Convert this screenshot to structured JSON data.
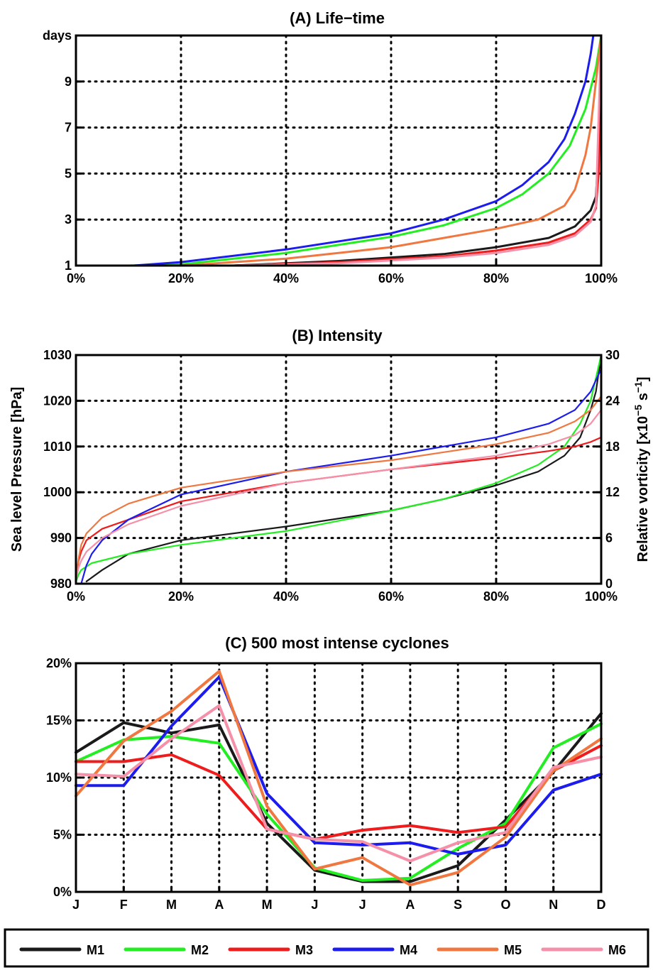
{
  "legend": [
    {
      "label": "M1",
      "color": "#1a1a1a"
    },
    {
      "label": "M2",
      "color": "#22ee22"
    },
    {
      "label": "M3",
      "color": "#ee1c1c"
    },
    {
      "label": "M4",
      "color": "#1c1cee"
    },
    {
      "label": "M5",
      "color": "#f07840"
    },
    {
      "label": "M6",
      "color": "#f590a8"
    }
  ],
  "chart_data": [
    {
      "type": "line",
      "title_letter": "(A)",
      "title_text": "Life−time",
      "xlim": [
        0,
        100
      ],
      "ylim": [
        1,
        11
      ],
      "xticks": [
        0,
        20,
        40,
        60,
        80,
        100
      ],
      "xtick_labels": [
        "0%",
        "20%",
        "40%",
        "60%",
        "80%",
        "100%"
      ],
      "yticks": [
        1,
        3,
        5,
        7,
        9,
        11
      ],
      "ytick_labels": [
        "1",
        "3",
        "5",
        "7",
        "9",
        "days"
      ],
      "grid": true,
      "series": [
        {
          "name": "M1",
          "color": "#1a1a1a",
          "x": [
            0,
            30,
            50,
            70,
            80,
            90,
            95,
            98,
            99,
            99.5,
            100
          ],
          "y": [
            1,
            1,
            1.2,
            1.5,
            1.8,
            2.2,
            2.7,
            3.4,
            4,
            6,
            11
          ]
        },
        {
          "name": "M2",
          "color": "#22ee22",
          "x": [
            0,
            10,
            20,
            40,
            60,
            70,
            80,
            85,
            90,
            94,
            97,
            99,
            100
          ],
          "y": [
            1,
            1,
            1.05,
            1.55,
            2.25,
            2.75,
            3.5,
            4.1,
            5,
            6.2,
            7.8,
            9.6,
            11
          ]
        },
        {
          "name": "M3",
          "color": "#ee1c1c",
          "x": [
            0,
            30,
            50,
            70,
            80,
            90,
            95,
            98,
            99,
            99.5,
            100
          ],
          "y": [
            1,
            1,
            1.15,
            1.4,
            1.65,
            2,
            2.4,
            3,
            3.5,
            5,
            11
          ]
        },
        {
          "name": "M4",
          "color": "#1c1cee",
          "x": [
            0,
            11,
            20,
            40,
            60,
            70,
            80,
            85,
            90,
            93,
            95,
            97,
            98,
            98.5
          ],
          "y": [
            1,
            1,
            1.15,
            1.7,
            2.4,
            3,
            3.8,
            4.5,
            5.5,
            6.5,
            7.6,
            9,
            10.2,
            11
          ]
        },
        {
          "name": "M5",
          "color": "#f07840",
          "x": [
            0,
            20,
            40,
            60,
            70,
            80,
            88,
            93,
            95,
            97,
            98,
            99,
            100
          ],
          "y": [
            1,
            1,
            1.3,
            1.8,
            2.2,
            2.6,
            3,
            3.6,
            4.3,
            5.8,
            7,
            9,
            11
          ]
        },
        {
          "name": "M6",
          "color": "#f590a8",
          "x": [
            0,
            30,
            50,
            70,
            80,
            90,
            95,
            98,
            99,
            100
          ],
          "y": [
            1,
            1,
            1.1,
            1.35,
            1.55,
            1.9,
            2.3,
            2.9,
            3.6,
            11
          ]
        }
      ]
    },
    {
      "type": "line",
      "title_letter": "(B)",
      "title_text": "Intensity",
      "ylabel": "Sea level Pressure [hPa]",
      "y2label_prefix": "Relative vorticity [x10",
      "y2label_sup1": "−5",
      "y2label_mid": " s",
      "y2label_sup2": "−1",
      "y2label_suffix": "]",
      "xlim": [
        0,
        100
      ],
      "ylim": [
        980,
        1030
      ],
      "y2lim": [
        0,
        30
      ],
      "xticks": [
        0,
        20,
        40,
        60,
        80,
        100
      ],
      "xtick_labels": [
        "0%",
        "20%",
        "40%",
        "60%",
        "80%",
        "100%"
      ],
      "yticks": [
        980,
        990,
        1000,
        1010,
        1020,
        1030
      ],
      "ytick_labels": [
        "980",
        "990",
        "1000",
        "1010",
        "1020",
        "1030"
      ],
      "y2ticks": [
        0,
        6,
        12,
        18,
        24,
        30
      ],
      "y2tick_labels": [
        "0",
        "6",
        "12",
        "18",
        "24",
        "30"
      ],
      "grid": true,
      "series": [
        {
          "name": "M1",
          "color": "#1a1a1a",
          "x": [
            2,
            5,
            10,
            20,
            40,
            60,
            70,
            80,
            88,
            93,
            96,
            98,
            99,
            100
          ],
          "y": [
            980.5,
            983,
            986.5,
            989.5,
            992.5,
            996,
            998.5,
            1001.5,
            1004.5,
            1008,
            1012,
            1018,
            1022,
            1030
          ]
        },
        {
          "name": "M2",
          "color": "#22ee22",
          "x": [
            0,
            0.5,
            1,
            3,
            10,
            20,
            40,
            60,
            70,
            80,
            88,
            93,
            96,
            98,
            99,
            100
          ],
          "y": [
            980.5,
            982,
            983,
            984.5,
            986.5,
            988.5,
            991.5,
            996,
            998.5,
            1002,
            1006,
            1010,
            1015,
            1020,
            1025,
            1030
          ]
        },
        {
          "name": "M3",
          "color": "#ee1c1c",
          "x": [
            0,
            0.5,
            1,
            2,
            5,
            10,
            20,
            40,
            60,
            80,
            90,
            95,
            98,
            100
          ],
          "y": [
            981,
            985,
            987,
            989.5,
            992,
            994,
            998,
            1002,
            1005,
            1007.5,
            1009,
            1010,
            1011,
            1012
          ]
        },
        {
          "name": "M4",
          "color": "#1c1cee",
          "x": [
            1,
            2,
            3,
            5,
            10,
            20,
            40,
            60,
            80,
            90,
            95,
            98,
            100
          ],
          "y": [
            980,
            984,
            986.5,
            989.5,
            994,
            999.5,
            1004.5,
            1008,
            1012,
            1015,
            1018,
            1022,
            1027
          ]
        },
        {
          "name": "M5",
          "color": "#f07840",
          "x": [
            0,
            0.5,
            1,
            2,
            5,
            10,
            20,
            40,
            60,
            80,
            90,
            95,
            98,
            100
          ],
          "y": [
            981,
            985.5,
            988.5,
            991,
            994.5,
            997.5,
            1001,
            1004.5,
            1007,
            1010.5,
            1013,
            1015.5,
            1018,
            1021
          ]
        },
        {
          "name": "M6",
          "color": "#f590a8",
          "x": [
            0,
            0.5,
            1,
            2,
            5,
            10,
            20,
            40,
            60,
            80,
            90,
            95,
            98,
            100
          ],
          "y": [
            981,
            983.5,
            985,
            987,
            990,
            993,
            997,
            1002,
            1005,
            1008,
            1010.5,
            1012.5,
            1015,
            1018
          ]
        }
      ]
    },
    {
      "type": "line",
      "title_letter": "(C)",
      "title_text": "500 most intense cyclones",
      "categories": [
        "J",
        "F",
        "M",
        "A",
        "M",
        "J",
        "J",
        "A",
        "S",
        "O",
        "N",
        "D"
      ],
      "ylim": [
        0,
        20
      ],
      "yticks": [
        0,
        5,
        10,
        15,
        20
      ],
      "ytick_labels": [
        "0%",
        "5%",
        "10%",
        "15%",
        "20%"
      ],
      "grid": true,
      "series": [
        {
          "name": "M1",
          "color": "#1a1a1a",
          "values": [
            12.2,
            14.8,
            13.9,
            14.6,
            6.0,
            1.9,
            0.9,
            0.9,
            2.3,
            6.3,
            10.5,
            15.6
          ]
        },
        {
          "name": "M2",
          "color": "#22ee22",
          "values": [
            11.4,
            13.3,
            13.6,
            13.0,
            6.8,
            2.1,
            1.0,
            1.2,
            3.8,
            6.0,
            12.6,
            14.7
          ]
        },
        {
          "name": "M3",
          "color": "#ee1c1c",
          "values": [
            11.4,
            11.4,
            12.0,
            10.2,
            5.5,
            4.6,
            5.4,
            5.8,
            5.2,
            5.7,
            10.6,
            12.8
          ]
        },
        {
          "name": "M4",
          "color": "#1c1cee",
          "values": [
            9.3,
            9.3,
            14.5,
            18.8,
            8.6,
            4.3,
            4.1,
            4.3,
            3.3,
            4.1,
            8.9,
            10.3
          ]
        },
        {
          "name": "M5",
          "color": "#f07840",
          "values": [
            8.4,
            13.2,
            15.8,
            19.3,
            7.5,
            2.0,
            3.0,
            0.6,
            1.7,
            4.8,
            10.6,
            13.4
          ]
        },
        {
          "name": "M6",
          "color": "#f590a8",
          "values": [
            10.3,
            10.1,
            13.4,
            16.3,
            5.5,
            4.6,
            4.4,
            2.7,
            4.3,
            5.2,
            10.9,
            11.8
          ]
        }
      ]
    }
  ]
}
